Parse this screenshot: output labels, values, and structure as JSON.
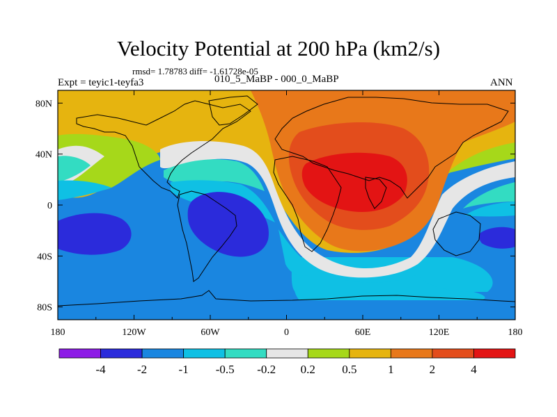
{
  "figure": {
    "title": "Velocity Potential at 200 hPa (km2/s)",
    "stats": "rmsd= 1.78783  diff= -1.61728e-05",
    "left_label": "Expt = teyic1-teyfa3",
    "center_label": "010_5_MaBP - 000_0_MaBP",
    "right_label": "ANN"
  },
  "chart_data": {
    "type": "heatmap",
    "title": "Velocity Potential at 200 hPa (km2/s)",
    "projection": "cylindrical equidistant",
    "x_ticks": [
      "180",
      "120W",
      "60W",
      "0",
      "60E",
      "120E",
      "180"
    ],
    "x_values": [
      -180,
      -120,
      -60,
      0,
      60,
      120,
      180
    ],
    "y_ticks": [
      "80N",
      "40N",
      "0",
      "40S",
      "80S"
    ],
    "y_values": [
      80,
      40,
      0,
      -40,
      -80
    ],
    "xlim": [
      -180,
      180
    ],
    "ylim": [
      -90,
      90
    ],
    "colorbar": {
      "levels": [
        "-4",
        "-2",
        "-1",
        "-0.5",
        "-0.2",
        "0.2",
        "0.5",
        "1",
        "2",
        "4"
      ],
      "colors": [
        "#8d1ce6",
        "#2b2bdb",
        "#1a86e0",
        "#0fc0e4",
        "#33dcc2",
        "#e6e6e6",
        "#a6d81a",
        "#e6b40f",
        "#e8781a",
        "#e34d1c",
        "#e31414"
      ]
    },
    "features": [
      {
        "name": "tropical divergence maximum",
        "center_lon": 55,
        "center_lat": 15,
        "value_range": "> 4"
      },
      {
        "name": "convergence minimum Atlantic/S. America",
        "center_lon": -55,
        "center_lat": -10,
        "value_range": "-2 to -4"
      },
      {
        "name": "convergence minimum E. Pacific",
        "center_lon": -150,
        "center_lat": -20,
        "value_range": "-2 to -4"
      },
      {
        "name": "convergence minimum W. Pacific",
        "center_lon": 165,
        "center_lat": -18,
        "value_range": "-2 to -4"
      }
    ]
  }
}
